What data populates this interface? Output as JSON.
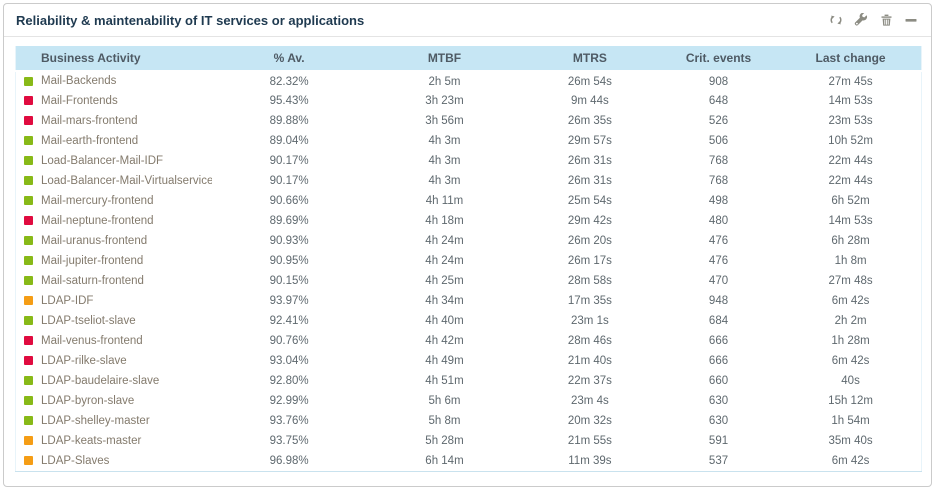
{
  "widget": {
    "title": "Reliability & maintenability of IT services or applications",
    "toolbar": [
      {
        "name": "refresh-icon"
      },
      {
        "name": "wrench-icon"
      },
      {
        "name": "trash-icon"
      },
      {
        "name": "minimize-icon"
      }
    ]
  },
  "colors": {
    "header_bg": "#c6e6f4",
    "title_text": "#1f3a50",
    "icon_gray": "#8c8c83",
    "status": {
      "ok": "#88b917",
      "critical": "#e00b3f",
      "warning": "#f59d15"
    }
  },
  "table": {
    "columns": [
      "Business Activity",
      "% Av.",
      "MTBF",
      "MTRS",
      "Crit. events",
      "Last change"
    ],
    "rows": [
      {
        "status": "ok",
        "name": "Mail-Backends",
        "av": "82.32%",
        "mtbf": "2h 5m",
        "mtrs": "26m 54s",
        "crit_events": "908",
        "last_change": "27m 45s"
      },
      {
        "status": "critical",
        "name": "Mail-Frontends",
        "av": "95.43%",
        "mtbf": "3h 23m",
        "mtrs": "9m 44s",
        "crit_events": "648",
        "last_change": "14m 53s"
      },
      {
        "status": "critical",
        "name": "Mail-mars-frontend",
        "av": "89.88%",
        "mtbf": "3h 56m",
        "mtrs": "26m 35s",
        "crit_events": "526",
        "last_change": "23m 53s"
      },
      {
        "status": "ok",
        "name": "Mail-earth-frontend",
        "av": "89.04%",
        "mtbf": "4h 3m",
        "mtrs": "29m 57s",
        "crit_events": "506",
        "last_change": "10h 52m"
      },
      {
        "status": "ok",
        "name": "Load-Balancer-Mail-IDF",
        "av": "90.17%",
        "mtbf": "4h 3m",
        "mtrs": "26m 31s",
        "crit_events": "768",
        "last_change": "22m 44s"
      },
      {
        "status": "ok",
        "name": "Load-Balancer-Mail-Virtualservice",
        "av": "90.17%",
        "mtbf": "4h 3m",
        "mtrs": "26m 31s",
        "crit_events": "768",
        "last_change": "22m 44s"
      },
      {
        "status": "ok",
        "name": "Mail-mercury-frontend",
        "av": "90.66%",
        "mtbf": "4h 11m",
        "mtrs": "25m 54s",
        "crit_events": "498",
        "last_change": "6h 52m"
      },
      {
        "status": "critical",
        "name": "Mail-neptune-frontend",
        "av": "89.69%",
        "mtbf": "4h 18m",
        "mtrs": "29m 42s",
        "crit_events": "480",
        "last_change": "14m 53s"
      },
      {
        "status": "ok",
        "name": "Mail-uranus-frontend",
        "av": "90.93%",
        "mtbf": "4h 24m",
        "mtrs": "26m 20s",
        "crit_events": "476",
        "last_change": "6h 28m"
      },
      {
        "status": "ok",
        "name": "Mail-jupiter-frontend",
        "av": "90.95%",
        "mtbf": "4h 24m",
        "mtrs": "26m 17s",
        "crit_events": "476",
        "last_change": "1h 8m"
      },
      {
        "status": "ok",
        "name": "Mail-saturn-frontend",
        "av": "90.15%",
        "mtbf": "4h 25m",
        "mtrs": "28m 58s",
        "crit_events": "470",
        "last_change": "27m 48s"
      },
      {
        "status": "warning",
        "name": "LDAP-IDF",
        "av": "93.97%",
        "mtbf": "4h 34m",
        "mtrs": "17m 35s",
        "crit_events": "948",
        "last_change": "6m 42s"
      },
      {
        "status": "ok",
        "name": "LDAP-tseliot-slave",
        "av": "92.41%",
        "mtbf": "4h 40m",
        "mtrs": "23m 1s",
        "crit_events": "684",
        "last_change": "2h 2m"
      },
      {
        "status": "critical",
        "name": "Mail-venus-frontend",
        "av": "90.76%",
        "mtbf": "4h 42m",
        "mtrs": "28m 46s",
        "crit_events": "666",
        "last_change": "1h 28m"
      },
      {
        "status": "critical",
        "name": "LDAP-rilke-slave",
        "av": "93.04%",
        "mtbf": "4h 49m",
        "mtrs": "21m 40s",
        "crit_events": "666",
        "last_change": "6m 42s"
      },
      {
        "status": "ok",
        "name": "LDAP-baudelaire-slave",
        "av": "92.80%",
        "mtbf": "4h 51m",
        "mtrs": "22m 37s",
        "crit_events": "660",
        "last_change": "40s"
      },
      {
        "status": "ok",
        "name": "LDAP-byron-slave",
        "av": "92.99%",
        "mtbf": "5h 6m",
        "mtrs": "23m 4s",
        "crit_events": "630",
        "last_change": "15h 12m"
      },
      {
        "status": "ok",
        "name": "LDAP-shelley-master",
        "av": "93.76%",
        "mtbf": "5h 8m",
        "mtrs": "20m 32s",
        "crit_events": "630",
        "last_change": "1h 54m"
      },
      {
        "status": "warning",
        "name": "LDAP-keats-master",
        "av": "93.75%",
        "mtbf": "5h 28m",
        "mtrs": "21m 55s",
        "crit_events": "591",
        "last_change": "35m 40s"
      },
      {
        "status": "warning",
        "name": "LDAP-Slaves",
        "av": "96.98%",
        "mtbf": "6h 14m",
        "mtrs": "11m 39s",
        "crit_events": "537",
        "last_change": "6m 42s"
      }
    ]
  }
}
